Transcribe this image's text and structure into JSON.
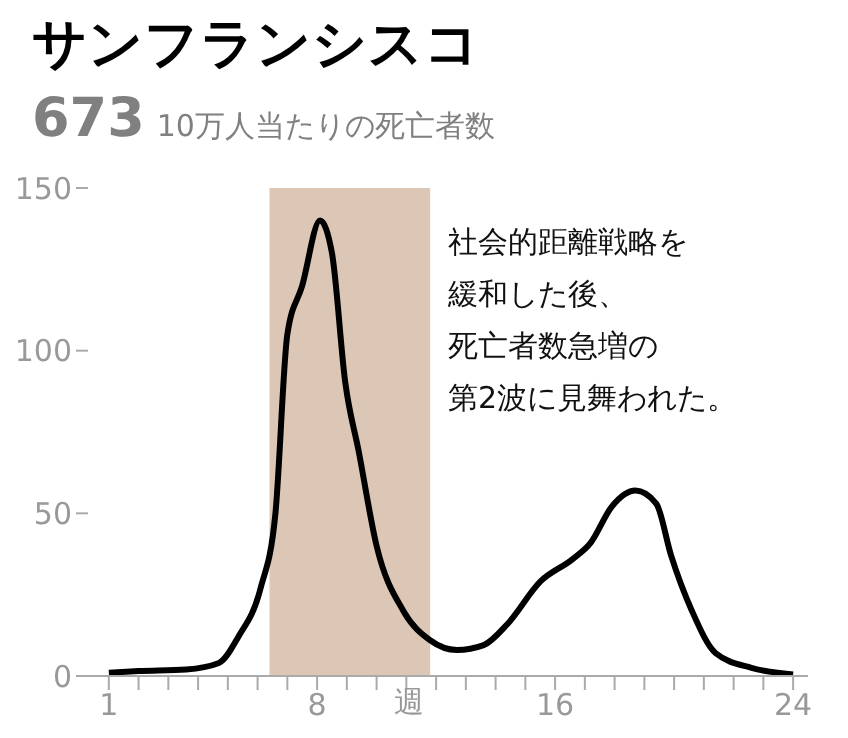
{
  "chart_data": {
    "type": "line",
    "title": "サンフランシスコ",
    "subtitle": "673 10万人当たりの死亡者数",
    "xlabel": "週",
    "annotations": [
      "社会的距離戦略を",
      "緩和した後、",
      "死亡者数急増の",
      "第2波に見舞われた。"
    ],
    "x": [
      1,
      2,
      3.6,
      4.7,
      5.35,
      6.1,
      6.6,
      7,
      7.5,
      8.1,
      8.5,
      8.95,
      9.4,
      10,
      10.9,
      11.8,
      12.7,
      13.6,
      14.4,
      15.5,
      16.6,
      17.2,
      17.9,
      18.7,
      19.4,
      19.9,
      20.6,
      21.4,
      22.6,
      24
    ],
    "series": [
      {
        "color": "#000000",
        "values": [
          1,
          1.5,
          2,
          4,
          12,
          27,
          50,
          105,
          120,
          140,
          130,
          90,
          69,
          40,
          20,
          11,
          8,
          9.5,
          16,
          29,
          36,
          41,
          52,
          57,
          53,
          37,
          20,
          7,
          2.5,
          0.5
        ]
      }
    ],
    "bands": [
      {
        "axis": "x",
        "from": 6.4,
        "to": 11.8,
        "color": "#dcc7b6"
      }
    ],
    "xlim": [
      0.3,
      24.5
    ],
    "ylim": [
      0,
      150
    ],
    "xticks": [
      1,
      {
        "value": 2,
        "label": null
      },
      {
        "value": 3,
        "label": null
      },
      {
        "value": 4,
        "label": null
      },
      {
        "value": 5,
        "label": null
      },
      {
        "value": 6,
        "label": null
      },
      {
        "value": 7,
        "label": null
      },
      8,
      {
        "value": 9,
        "label": null
      },
      {
        "value": 10,
        "label": null
      },
      {
        "value": 11,
        "label": null
      },
      {
        "value": 12,
        "label": null
      },
      {
        "value": 13,
        "label": null
      },
      {
        "value": 14,
        "label": null
      },
      {
        "value": 15,
        "label": null
      },
      16,
      {
        "value": 17,
        "label": null
      },
      {
        "value": 18,
        "label": null
      },
      {
        "value": 19,
        "label": null
      },
      {
        "value": 20,
        "label": null
      },
      {
        "value": 21,
        "label": null
      },
      {
        "value": 22,
        "label": null
      },
      {
        "value": 23,
        "label": null
      },
      24
    ],
    "yticks": [
      0,
      50,
      100,
      150
    ],
    "grid": false,
    "legend": false,
    "marker": "none",
    "line_style": "solid"
  }
}
